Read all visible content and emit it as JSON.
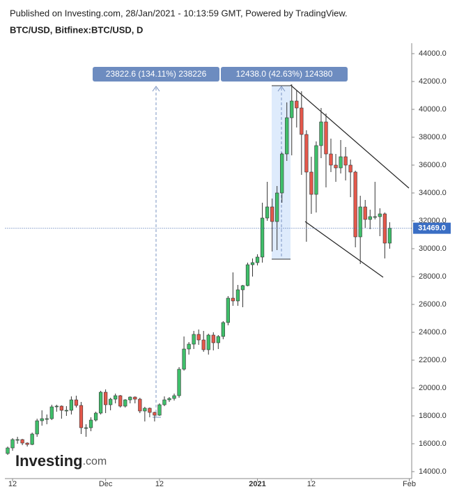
{
  "chart_data": {
    "type": "candlestick",
    "subtitle": "Published on Investing.com, 28/Jan/2021 - 10:13:59 GMT, Powered by TradingView.",
    "title": "BTC/USD, Bitfinex:BTC/USD, D",
    "watermark": {
      "name": "Investing",
      "suffix": ".com"
    },
    "annotations": [
      "23822.6 (134.11%) 238226",
      "12438.0 (42.63%) 124380"
    ],
    "categories": [
      null,
      "12",
      null,
      null,
      null,
      null,
      null,
      null,
      null,
      null,
      null,
      null,
      null,
      null,
      null,
      null,
      null,
      null,
      null,
      null,
      "Dec",
      null,
      null,
      null,
      null,
      null,
      null,
      null,
      null,
      null,
      null,
      "12",
      null,
      null,
      null,
      null,
      null,
      null,
      null,
      null,
      null,
      null,
      null,
      null,
      null,
      null,
      null,
      null,
      null,
      null,
      null,
      "2021",
      null,
      null,
      null,
      null,
      null,
      null,
      null,
      null,
      null,
      null,
      "12",
      null,
      null,
      null,
      null,
      null,
      null,
      null,
      null,
      null,
      null,
      null,
      null,
      null,
      null,
      null,
      null,
      null,
      null,
      null,
      "Feb"
    ],
    "open": [
      15300,
      15700,
      16300,
      16300,
      16050,
      15950,
      16700,
      17650,
      17800,
      17800,
      18650,
      18700,
      18400,
      18400,
      19150,
      18750,
      17150,
      17150,
      17700,
      18200,
      19700,
      18800,
      19200,
      19450,
      18700,
      19150,
      19350,
      19200,
      18350,
      18550,
      18250,
      18050,
      18800,
      19150,
      19250,
      19450,
      21350,
      22800,
      23150,
      23850,
      23450,
      22750,
      23800,
      23250,
      23700,
      24700,
      26450,
      26250,
      27050,
      27350,
      28850,
      29000,
      29400,
      32200,
      33000,
      31950,
      34000,
      36800,
      39400,
      40600,
      40100,
      38200,
      35500,
      33900,
      37400,
      39100,
      36800,
      36000,
      35800,
      36600,
      36000,
      35500,
      30850,
      33000,
      32100,
      32300,
      32300,
      32500,
      30400,
      null,
      null,
      null,
      null
    ],
    "high": [
      15800,
      16400,
      16500,
      16350,
      16100,
      16800,
      17800,
      18400,
      18100,
      18800,
      18800,
      18750,
      18700,
      19400,
      19450,
      19000,
      17400,
      17900,
      18300,
      19800,
      19900,
      19300,
      19600,
      19500,
      19200,
      19400,
      19400,
      19300,
      18650,
      18600,
      18300,
      18900,
      19400,
      19350,
      19600,
      21500,
      23700,
      23300,
      24100,
      24200,
      24100,
      23900,
      24000,
      23800,
      24800,
      26600,
      28300,
      27400,
      27400,
      29000,
      29300,
      29600,
      33300,
      34800,
      33600,
      34500,
      36900,
      40500,
      41800,
      41400,
      41300,
      38500,
      36600,
      37700,
      40100,
      39700,
      37900,
      36800,
      37800,
      37300,
      36400,
      35600,
      33800,
      33500,
      32800,
      34800,
      32900,
      32600,
      31900,
      null,
      null,
      null,
      null
    ],
    "low": [
      15200,
      15500,
      16000,
      15900,
      15800,
      15900,
      16500,
      17300,
      17400,
      17700,
      18300,
      17800,
      18000,
      18100,
      18600,
      16700,
      16500,
      16900,
      17600,
      18100,
      18200,
      18400,
      18900,
      18600,
      18600,
      18900,
      18900,
      18200,
      17600,
      17900,
      17600,
      18000,
      18700,
      19000,
      19100,
      19300,
      21250,
      22400,
      22800,
      23100,
      22600,
      22400,
      22700,
      22800,
      23500,
      24500,
      25900,
      25900,
      25800,
      27300,
      28000,
      28800,
      29000,
      32000,
      29800,
      29900,
      33300,
      36300,
      36700,
      38700,
      35300,
      30500,
      32500,
      32600,
      36500,
      34400,
      35500,
      34800,
      35400,
      34900,
      33700,
      30100,
      28900,
      31500,
      31400,
      32100,
      30900,
      29300,
      30000,
      null,
      null,
      null,
      null
    ],
    "close": [
      15700,
      16300,
      16300,
      16050,
      15950,
      16700,
      17650,
      17800,
      17800,
      18650,
      18700,
      18400,
      18400,
      19150,
      18750,
      17150,
      17150,
      17700,
      18200,
      19700,
      18800,
      19200,
      19450,
      18700,
      19150,
      19350,
      19200,
      18350,
      18550,
      18250,
      18050,
      18800,
      19150,
      19250,
      19450,
      21350,
      22800,
      23150,
      23850,
      23450,
      22750,
      23800,
      23250,
      23700,
      24700,
      26450,
      26250,
      27050,
      27350,
      28850,
      29000,
      29400,
      32200,
      33000,
      31950,
      34000,
      36800,
      39400,
      40600,
      40100,
      38200,
      35500,
      33900,
      37400,
      39100,
      36800,
      36000,
      35800,
      36600,
      36000,
      35500,
      30850,
      33000,
      32100,
      32300,
      32300,
      32500,
      30400,
      31469,
      null,
      null,
      null,
      null
    ],
    "up_color": "#3fbf6a",
    "down_color": "#e5584b",
    "last_price": {
      "value": 31469,
      "label": "31469.0"
    },
    "ylim": [
      13500,
      44750
    ],
    "yticks": [
      {
        "value": 14000,
        "label": "14000.0"
      },
      {
        "value": 16000,
        "label": "16000.0"
      },
      {
        "value": 18000,
        "label": "18000.0"
      },
      {
        "value": 20000,
        "label": "20000.0"
      },
      {
        "value": 22000,
        "label": "22000.0"
      },
      {
        "value": 24000,
        "label": "24000.0"
      },
      {
        "value": 26000,
        "label": "26000.0"
      },
      {
        "value": 28000,
        "label": "28000.0"
      },
      {
        "value": 30000,
        "label": "30000.0"
      },
      {
        "value": 32000,
        "label": "32000.0"
      },
      {
        "value": 34000,
        "label": "34000.0"
      },
      {
        "value": 36000,
        "label": "36000.0"
      },
      {
        "value": 38000,
        "label": "38000.0"
      },
      {
        "value": 40000,
        "label": "40000.0"
      },
      {
        "value": 42000,
        "label": "42000.0"
      },
      {
        "value": 44000,
        "label": "44000.0"
      }
    ]
  }
}
